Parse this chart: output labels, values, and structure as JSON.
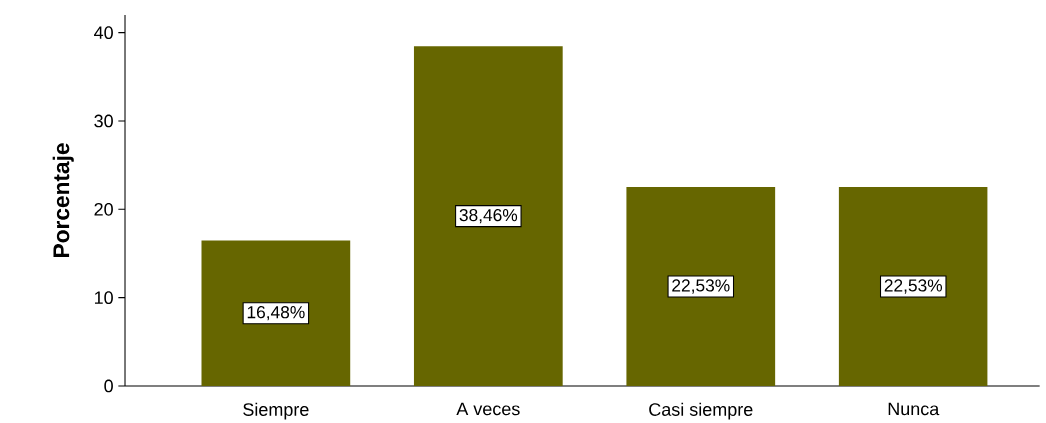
{
  "chart_data": {
    "type": "bar",
    "ylabel": "Porcentaje",
    "categories": [
      "Siempre",
      "A veces",
      "Casi siempre",
      "Nunca"
    ],
    "values": [
      16.48,
      38.46,
      22.53,
      22.53
    ],
    "value_labels": [
      "16,48%",
      "38,46%",
      "22,53%",
      "22,53%"
    ],
    "color": "#666600",
    "ylim": [
      0,
      42
    ],
    "yticks": [
      0,
      10,
      20,
      30,
      40
    ]
  }
}
